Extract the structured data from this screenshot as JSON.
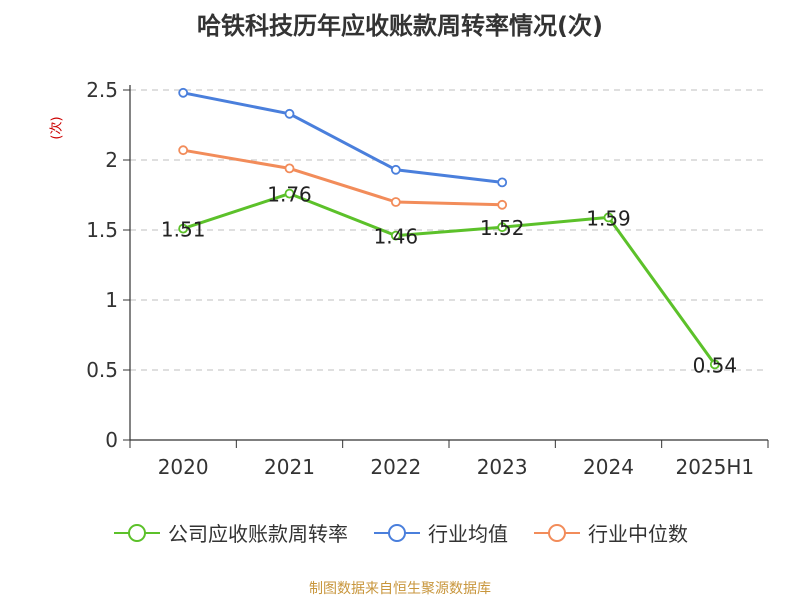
{
  "chart_data": {
    "type": "line",
    "title": "哈铁科技历年应收账款周转率情况(次)",
    "ylabel": "(次)",
    "xlabel": "",
    "categories": [
      "2020",
      "2021",
      "2022",
      "2023",
      "2024",
      "2025H1"
    ],
    "ylim": [
      0,
      2.5
    ],
    "yticks": [
      "0",
      "0.5",
      "1",
      "1.5",
      "2",
      "2.5"
    ],
    "grid": true,
    "legend_position": "bottom",
    "series": [
      {
        "name": "公司应收账款周转率",
        "color": "#5cc12a",
        "values": [
          1.51,
          1.76,
          1.46,
          1.52,
          1.59,
          0.54
        ],
        "labels": [
          "1.51",
          "1.76",
          "1.46",
          "1.52",
          "1.59",
          "0.54"
        ]
      },
      {
        "name": "行业均值",
        "color": "#4a7fdc",
        "values": [
          2.48,
          2.33,
          1.93,
          1.84,
          null,
          null
        ]
      },
      {
        "name": "行业中位数",
        "color": "#f28c5a",
        "values": [
          2.07,
          1.94,
          1.7,
          1.68,
          null,
          null
        ]
      }
    ]
  },
  "source": "制图数据来自恒生聚源数据库"
}
